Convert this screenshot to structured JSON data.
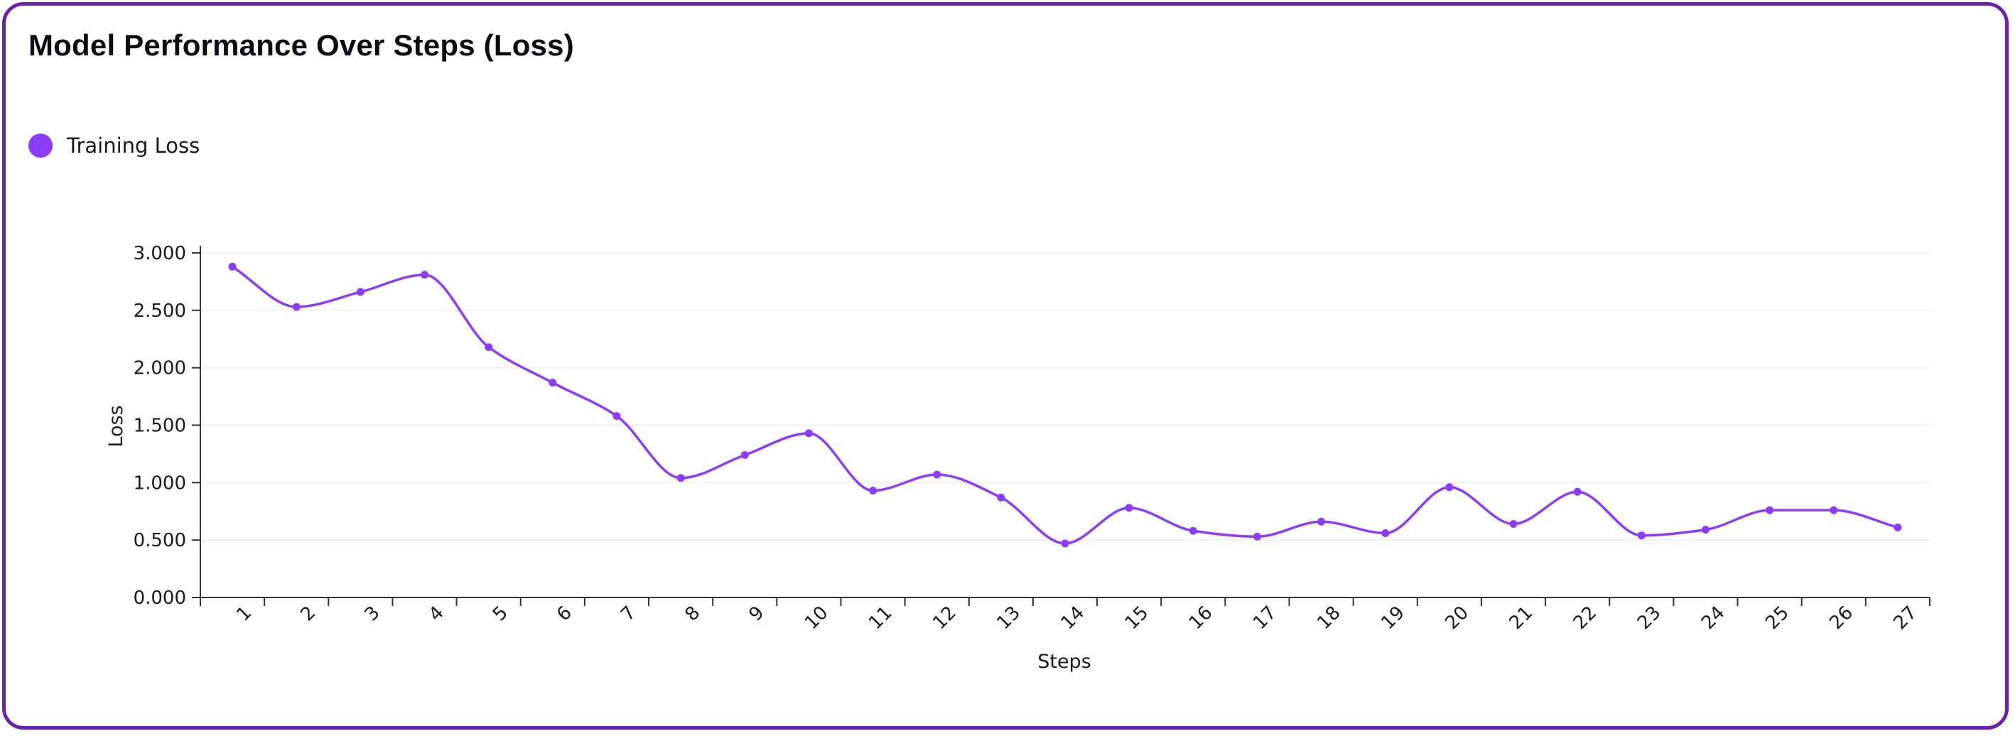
{
  "title": "Model Performance Over Steps (Loss)",
  "legend": {
    "label": "Training Loss"
  },
  "colors": {
    "border": "#6b21a8",
    "series": "#8b3cf7",
    "grid": "#f0f0f0",
    "axis": "#333333"
  },
  "chart_data": {
    "type": "line",
    "title": "Model Performance Over Steps (Loss)",
    "xlabel": "Steps",
    "ylabel": "Loss",
    "ylim": [
      0,
      3
    ],
    "yticks": [
      "0.000",
      "0.500",
      "1.000",
      "1.500",
      "2.000",
      "2.500",
      "3.000"
    ],
    "x": [
      1,
      2,
      3,
      4,
      5,
      6,
      7,
      8,
      9,
      10,
      11,
      12,
      13,
      14,
      15,
      16,
      17,
      18,
      19,
      20,
      21,
      22,
      23,
      24,
      25,
      26,
      27
    ],
    "series": [
      {
        "name": "Training Loss",
        "values": [
          2.88,
          2.53,
          2.66,
          2.81,
          2.18,
          1.87,
          1.58,
          1.04,
          1.24,
          1.43,
          0.93,
          1.07,
          0.87,
          0.47,
          0.78,
          0.58,
          0.53,
          0.66,
          0.56,
          0.96,
          0.64,
          0.92,
          0.54,
          0.59,
          0.76,
          0.76,
          0.61
        ]
      }
    ],
    "grid": true,
    "legend_position": "top-left"
  }
}
